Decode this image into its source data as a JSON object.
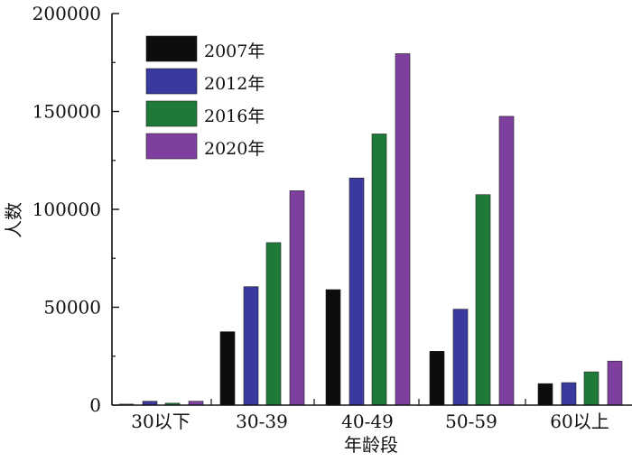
{
  "chart_data": {
    "type": "bar",
    "title": "",
    "xlabel": "年龄段",
    "ylabel": "人数",
    "categories": [
      "30以下",
      "30-39",
      "40-49",
      "50-59",
      "60以上"
    ],
    "series": [
      {
        "name": "2007年",
        "color": "#0d0d0d",
        "values": [
          500,
          37500,
          59000,
          27500,
          11000
        ]
      },
      {
        "name": "2012年",
        "color": "#3a3a9e",
        "values": [
          2000,
          60500,
          116000,
          49000,
          11500
        ]
      },
      {
        "name": "2016年",
        "color": "#1f7a3a",
        "values": [
          1000,
          83000,
          138500,
          107500,
          17000
        ]
      },
      {
        "name": "2020年",
        "color": "#7f3f9f",
        "values": [
          2000,
          109500,
          179500,
          147500,
          22500
        ]
      }
    ],
    "ylim": [
      0,
      200000
    ],
    "yticks": [
      0,
      50000,
      100000,
      150000,
      200000
    ],
    "grid": false,
    "legend_position": "top-left"
  }
}
